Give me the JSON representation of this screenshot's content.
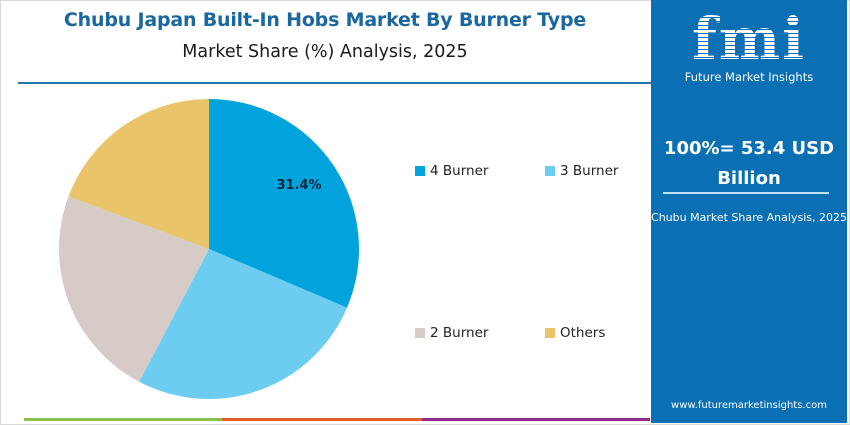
{
  "header": {
    "title": "Chubu Japan Built-In Hobs Market By Burner Type",
    "subtitle": "Market Share (%) Analysis, 2025"
  },
  "panel": {
    "logo": "fmi",
    "logo_sub": "Future Market Insights",
    "total_line1": "100%= 53.4 USD",
    "total_line2": "Billion",
    "caption": "Chubu Market Share Analysis, 2025",
    "url": "www.futuremarketinsights.com"
  },
  "legend": [
    {
      "label": "4 Burner",
      "color": "#00a3dc"
    },
    {
      "label": "3 Burner",
      "color": "#6dcdf1"
    },
    {
      "label": "2 Burner",
      "color": "#d6cbc7"
    },
    {
      "label": "Others",
      "color": "#e9c46a"
    }
  ],
  "pie_label": "31.4%",
  "bottom_bar_colors": [
    "#8cc04b",
    "#e35d2c",
    "#8e2e8a"
  ],
  "chart_data": {
    "type": "pie",
    "title": "Chubu Japan Built-In Hobs Market By Burner Type",
    "subtitle": "Market Share (%) Analysis, 2025",
    "categories": [
      "4 Burner",
      "3 Burner",
      "2 Burner",
      "Others"
    ],
    "values": [
      31.4,
      26.3,
      23.0,
      19.3
    ],
    "labeled_values": {
      "4 Burner": "31.4%"
    },
    "colors": [
      "#00a3dc",
      "#6dcdf1",
      "#d6cbc7",
      "#e9c46a"
    ],
    "start_angle": "top, clockwise",
    "legend_position": "right",
    "total": "100%= 53.4 USD Billion"
  }
}
